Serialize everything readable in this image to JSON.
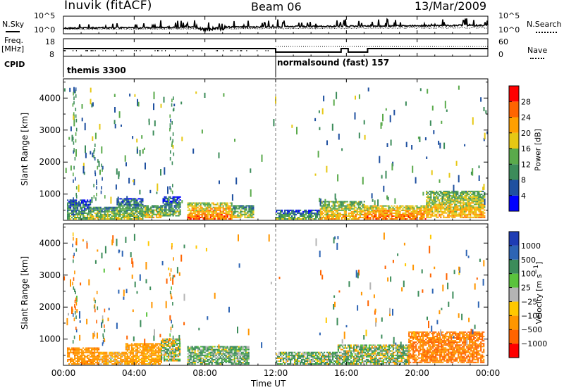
{
  "header": {
    "station": "Inuvik (fitACF)",
    "beam": "Beam 06",
    "date": "13/Mar/2009"
  },
  "noise_panel": {
    "left_label": "N.Sky",
    "right_label": "N.Search",
    "left_ticks": [
      "10^5",
      "10^0"
    ],
    "right_ticks": [
      "10^5",
      "10^0"
    ]
  },
  "freq_panel": {
    "left_label_line1": "Freq.",
    "left_label_line2": "[MHz]",
    "right_label": "Nave",
    "left_ticks": [
      "18",
      "8"
    ],
    "right_ticks": [
      "60",
      "0"
    ]
  },
  "cpid_panel": {
    "label": "CPID",
    "segments": [
      {
        "name": "themis 3300",
        "start_hour": 0
      },
      {
        "name": "normalsound (fast) 157",
        "start_hour": 12
      }
    ]
  },
  "x_axis": {
    "title": "Time UT",
    "ticks": [
      "00:00",
      "04:00",
      "08:00",
      "12:00",
      "16:00",
      "20:00",
      "00:00"
    ],
    "range_hours": [
      0,
      24
    ]
  },
  "colors": {
    "power": [
      "#0000ff",
      "#1f50a0",
      "#3c8c5a",
      "#5aaa4b",
      "#e6c814",
      "#ffa000",
      "#ff6400",
      "#ff0000"
    ],
    "velocity": [
      "#1e3cb4",
      "#2d64b4",
      "#3c8c5a",
      "#5ac33c",
      "#b4b4b4",
      "#ffc800",
      "#ff9600",
      "#ff6400",
      "#ff0000"
    ]
  },
  "chart_data": [
    {
      "type": "heatmap",
      "title": "",
      "xlabel": "Time UT",
      "ylabel": "Slant Range [km]",
      "xlim": [
        0,
        24
      ],
      "ylim": [
        180,
        4600
      ],
      "yticks": [
        "1000",
        "2000",
        "3000",
        "4000"
      ],
      "colorbar": {
        "label": "Power [dB]",
        "ticks": [
          "28",
          "24",
          "20",
          "16",
          "12",
          "8",
          "4"
        ],
        "range": [
          0,
          32
        ]
      },
      "regions": [
        {
          "t0": 0.2,
          "t1": 1.5,
          "r0": 200,
          "r1": 800,
          "value": 14
        },
        {
          "t0": 1.5,
          "t1": 3.0,
          "r0": 200,
          "r1": 600,
          "value": 18
        },
        {
          "t0": 3.0,
          "t1": 4.5,
          "r0": 200,
          "r1": 850,
          "value": 16
        },
        {
          "t0": 4.5,
          "t1": 5.6,
          "r0": 250,
          "r1": 650,
          "value": 20
        },
        {
          "t0": 5.6,
          "t1": 6.6,
          "r0": 300,
          "r1": 900,
          "value": 14
        },
        {
          "t0": 7.0,
          "t1": 9.5,
          "r0": 200,
          "r1": 700,
          "value": 26
        },
        {
          "t0": 9.5,
          "t1": 10.7,
          "r0": 250,
          "r1": 650,
          "value": 18
        },
        {
          "t0": 12.0,
          "t1": 14.5,
          "r0": 200,
          "r1": 500,
          "value": 14
        },
        {
          "t0": 14.5,
          "t1": 17.0,
          "r0": 200,
          "r1": 750,
          "value": 22
        },
        {
          "t0": 17.0,
          "t1": 20.5,
          "r0": 200,
          "r1": 650,
          "value": 26
        },
        {
          "t0": 20.5,
          "t1": 23.8,
          "r0": 250,
          "r1": 1100,
          "value": 22
        }
      ]
    },
    {
      "type": "heatmap",
      "title": "",
      "xlabel": "Time UT",
      "ylabel": "Slant Range [km]",
      "xlim": [
        0,
        24
      ],
      "ylim": [
        180,
        4600
      ],
      "yticks": [
        "1000",
        "2000",
        "3000",
        "4000"
      ],
      "colorbar": {
        "label": "Velocity [m s^-1]",
        "ticks": [
          "1000",
          "500",
          "100",
          "25",
          "−25",
          "−100",
          "−500",
          "−1000"
        ],
        "range": [
          -1200,
          1200
        ]
      },
      "regions": [
        {
          "t0": 0.2,
          "t1": 2.0,
          "r0": 200,
          "r1": 700,
          "value": -200
        },
        {
          "t0": 2.0,
          "t1": 3.5,
          "r0": 200,
          "r1": 600,
          "value": -100
        },
        {
          "t0": 3.5,
          "t1": 5.5,
          "r0": 200,
          "r1": 850,
          "value": -150
        },
        {
          "t0": 5.5,
          "t1": 6.6,
          "r0": 300,
          "r1": 1000,
          "value": 20
        },
        {
          "t0": 7.0,
          "t1": 10.5,
          "r0": 200,
          "r1": 750,
          "value": 80
        },
        {
          "t0": 12.0,
          "t1": 15.5,
          "r0": 200,
          "r1": 600,
          "value": 60
        },
        {
          "t0": 15.5,
          "t1": 19.5,
          "r0": 200,
          "r1": 800,
          "value": 40
        },
        {
          "t0": 19.5,
          "t1": 23.8,
          "r0": 250,
          "r1": 1200,
          "value": -300
        }
      ]
    }
  ]
}
